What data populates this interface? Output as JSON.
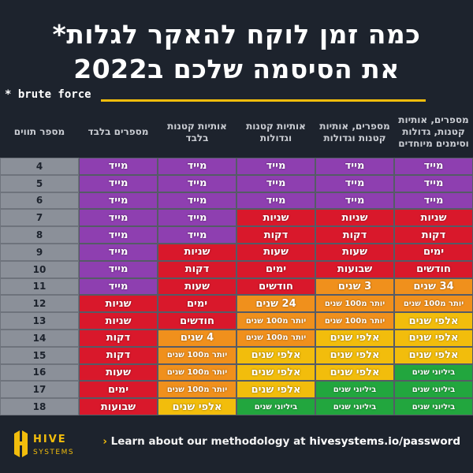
{
  "header": {
    "title_lines": [
      "כמה זמן לוקח להאקר לגלות*",
      "את הסיסמה שלכם ב2022"
    ],
    "note": "* brute force"
  },
  "table": {
    "columns": [
      "מספר תווים",
      "מספרים בלבד",
      "אותיות קטנות בלבד",
      "אותיות קטנות וגדולות",
      "מספרים, אותיות קטנות וגדולות",
      "מספרים, אותיות קטנות, גדולות וסימנים מיוחדים"
    ],
    "rows": [
      {
        "chars": 4,
        "cells": [
          {
            "text": "מייד",
            "color": "#8e3fb0"
          },
          {
            "text": "מייד",
            "color": "#8e3fb0"
          },
          {
            "text": "מייד",
            "color": "#8e3fb0"
          },
          {
            "text": "מייד",
            "color": "#8e3fb0"
          },
          {
            "text": "מייד",
            "color": "#8e3fb0"
          }
        ]
      },
      {
        "chars": 5,
        "cells": [
          {
            "text": "מייד",
            "color": "#8e3fb0"
          },
          {
            "text": "מייד",
            "color": "#8e3fb0"
          },
          {
            "text": "מייד",
            "color": "#8e3fb0"
          },
          {
            "text": "מייד",
            "color": "#8e3fb0"
          },
          {
            "text": "מייד",
            "color": "#8e3fb0"
          }
        ]
      },
      {
        "chars": 6,
        "cells": [
          {
            "text": "מייד",
            "color": "#8e3fb0"
          },
          {
            "text": "מייד",
            "color": "#8e3fb0"
          },
          {
            "text": "מייד",
            "color": "#8e3fb0"
          },
          {
            "text": "מייד",
            "color": "#8e3fb0"
          },
          {
            "text": "מייד",
            "color": "#8e3fb0"
          }
        ]
      },
      {
        "chars": 7,
        "cells": [
          {
            "text": "מייד",
            "color": "#8e3fb0"
          },
          {
            "text": "מייד",
            "color": "#8e3fb0"
          },
          {
            "text": "שניות",
            "color": "#d9182b"
          },
          {
            "text": "שניות",
            "color": "#d9182b"
          },
          {
            "text": "שניות",
            "color": "#d9182b"
          }
        ]
      },
      {
        "chars": 8,
        "cells": [
          {
            "text": "מייד",
            "color": "#8e3fb0"
          },
          {
            "text": "מייד",
            "color": "#8e3fb0"
          },
          {
            "text": "דקות",
            "color": "#d9182b"
          },
          {
            "text": "דקות",
            "color": "#d9182b"
          },
          {
            "text": "דקות",
            "color": "#d9182b"
          }
        ]
      },
      {
        "chars": 9,
        "cells": [
          {
            "text": "מייד",
            "color": "#8e3fb0"
          },
          {
            "text": "שניות",
            "color": "#d9182b"
          },
          {
            "text": "שעות",
            "color": "#d9182b"
          },
          {
            "text": "שעות",
            "color": "#d9182b"
          },
          {
            "text": "ימים",
            "color": "#d9182b"
          }
        ]
      },
      {
        "chars": 10,
        "cells": [
          {
            "text": "מייד",
            "color": "#8e3fb0"
          },
          {
            "text": "דקות",
            "color": "#d9182b"
          },
          {
            "text": "ימים",
            "color": "#d9182b"
          },
          {
            "text": "שבועות",
            "color": "#d9182b"
          },
          {
            "text": "חודשים",
            "color": "#d9182b"
          }
        ]
      },
      {
        "chars": 11,
        "cells": [
          {
            "text": "מייד",
            "color": "#8e3fb0"
          },
          {
            "text": "שעות",
            "color": "#d9182b"
          },
          {
            "text": "חודשים",
            "color": "#d9182b"
          },
          {
            "text": "3 שנים",
            "color": "#f0901c"
          },
          {
            "text": "34 שנים",
            "color": "#f0901c"
          }
        ]
      },
      {
        "chars": 12,
        "cells": [
          {
            "text": "שניות",
            "color": "#d9182b"
          },
          {
            "text": "ימים",
            "color": "#d9182b"
          },
          {
            "text": "24 שנים",
            "color": "#f0901c"
          },
          {
            "text": "יותר מ100 שנים",
            "color": "#f0901c"
          },
          {
            "text": "יותר מ100 שנים",
            "color": "#f0901c"
          }
        ]
      },
      {
        "chars": 13,
        "cells": [
          {
            "text": "שניות",
            "color": "#d9182b"
          },
          {
            "text": "חודשים",
            "color": "#d9182b"
          },
          {
            "text": "יותר מ100 שנים",
            "color": "#f0901c"
          },
          {
            "text": "יותר מ100 שנים",
            "color": "#f0901c"
          },
          {
            "text": "אלפי שנים",
            "color": "#f2bd0c"
          }
        ]
      },
      {
        "chars": 14,
        "cells": [
          {
            "text": "דקות",
            "color": "#d9182b"
          },
          {
            "text": "4 שנים",
            "color": "#f0901c"
          },
          {
            "text": "יותר מ100 שנים",
            "color": "#f0901c"
          },
          {
            "text": "אלפי שנים",
            "color": "#f2bd0c"
          },
          {
            "text": "אלפי שנים",
            "color": "#f2bd0c"
          }
        ]
      },
      {
        "chars": 15,
        "cells": [
          {
            "text": "דקות",
            "color": "#d9182b"
          },
          {
            "text": "יותר מ100 שנים",
            "color": "#f0901c"
          },
          {
            "text": "אלפי שנים",
            "color": "#f2bd0c"
          },
          {
            "text": "אלפי שנים",
            "color": "#f2bd0c"
          },
          {
            "text": "אלפי שנים",
            "color": "#f2bd0c"
          }
        ]
      },
      {
        "chars": 16,
        "cells": [
          {
            "text": "שעות",
            "color": "#d9182b"
          },
          {
            "text": "יותר מ100 שנים",
            "color": "#f0901c"
          },
          {
            "text": "אלפי שנים",
            "color": "#f2bd0c"
          },
          {
            "text": "אלפי שנים",
            "color": "#f2bd0c"
          },
          {
            "text": "ביליוני שנים",
            "color": "#22a63e"
          }
        ]
      },
      {
        "chars": 17,
        "cells": [
          {
            "text": "ימים",
            "color": "#d9182b"
          },
          {
            "text": "יותר מ100 שנים",
            "color": "#f0901c"
          },
          {
            "text": "אלפי שנים",
            "color": "#f2bd0c"
          },
          {
            "text": "ביליוני שנים",
            "color": "#22a63e"
          },
          {
            "text": "ביליוני שנים",
            "color": "#22a63e"
          }
        ]
      },
      {
        "chars": 18,
        "cells": [
          {
            "text": "שבועות",
            "color": "#d9182b"
          },
          {
            "text": "אלפי שנים",
            "color": "#f2bd0c"
          },
          {
            "text": "ביליוני שנים",
            "color": "#22a63e"
          },
          {
            "text": "ביליוני שנים",
            "color": "#22a63e"
          },
          {
            "text": "ביליוני שנים",
            "color": "#22a63e"
          }
        ]
      }
    ]
  },
  "footer": {
    "logo_top": "HIVE",
    "logo_bottom": "SYSTEMS",
    "text": "Learn about our methodology at",
    "link": "hivesystems.io/password"
  }
}
